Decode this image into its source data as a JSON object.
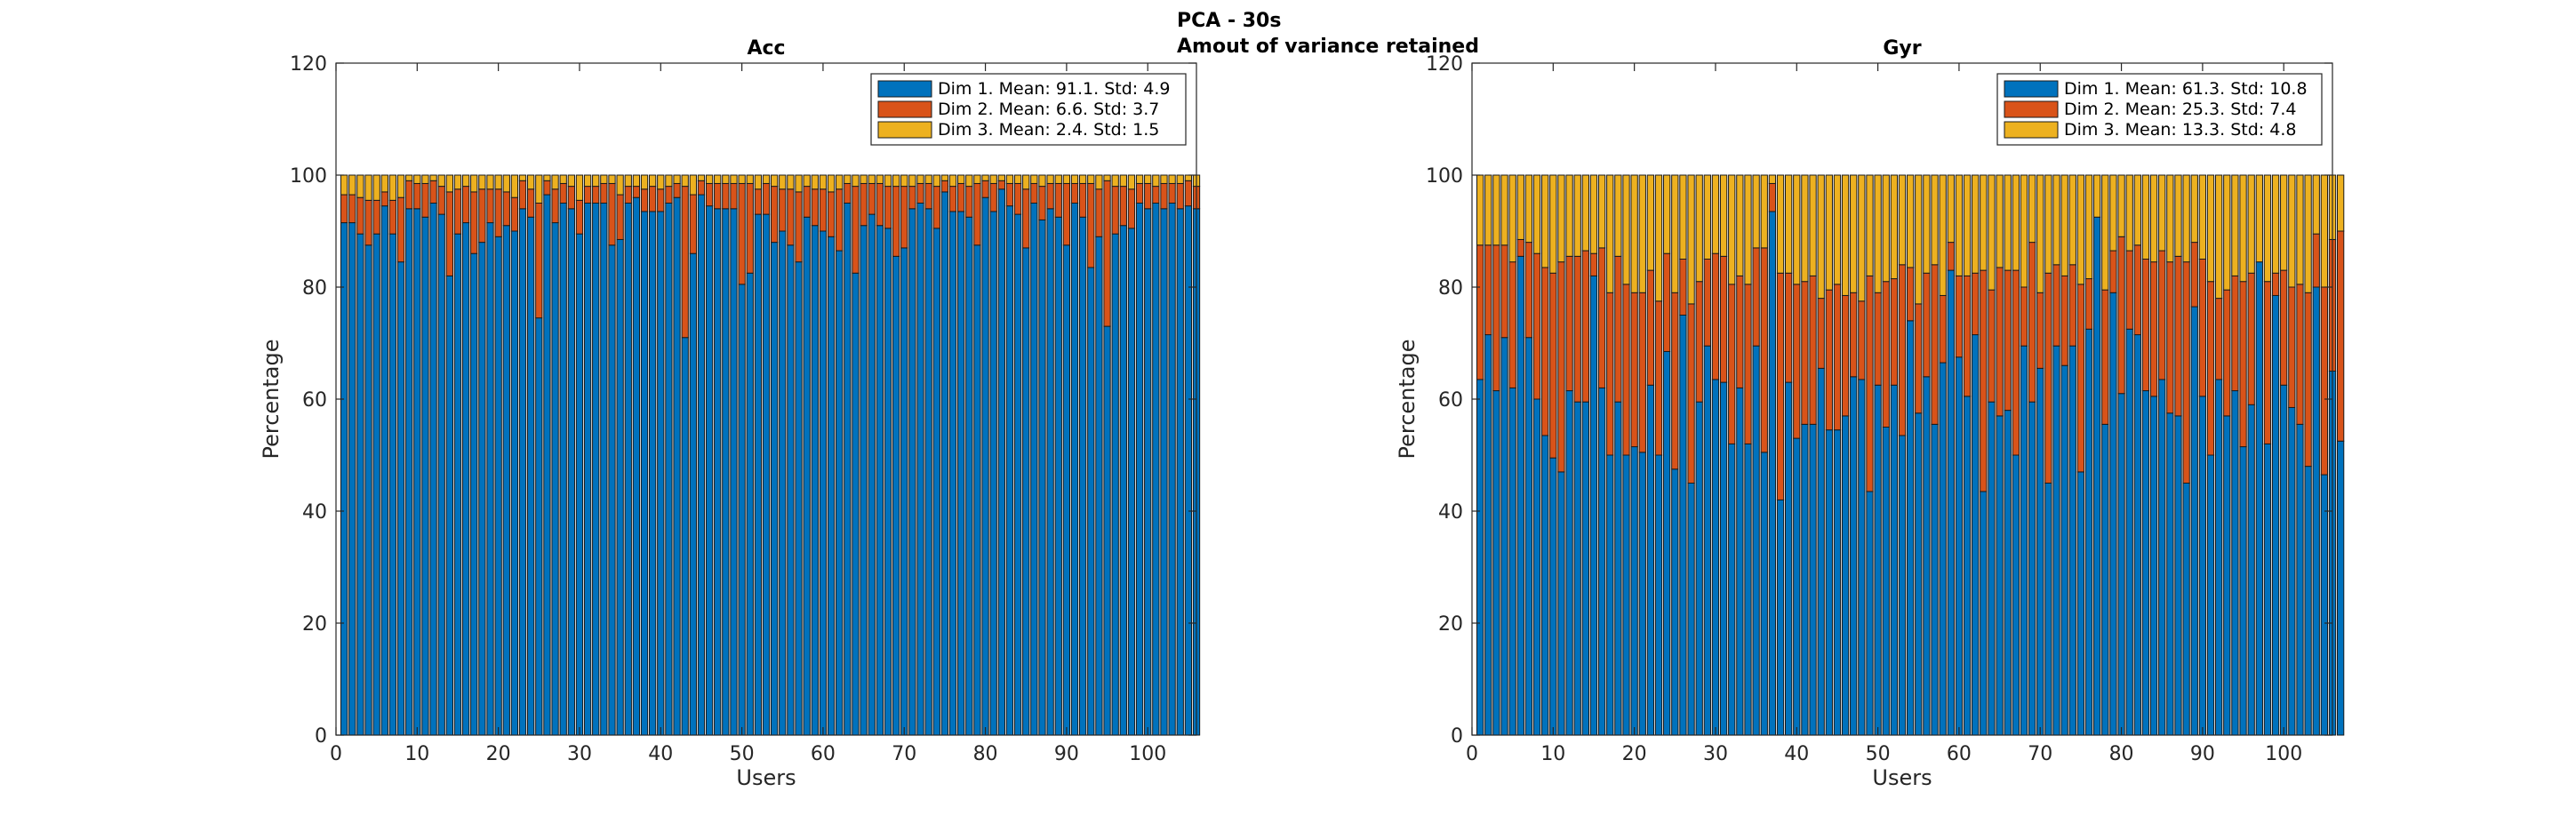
{
  "figure": {
    "title_line1": "PCA - 30s",
    "title_line2": "Amout of variance retained"
  },
  "chart_data": [
    {
      "type": "bar",
      "stacked": true,
      "title": "Acc",
      "xlabel": "Users",
      "ylabel": "Percentage",
      "xlim": [
        0,
        106
      ],
      "ylim": [
        0,
        120
      ],
      "xticks": [
        0,
        10,
        20,
        30,
        40,
        50,
        60,
        70,
        80,
        90,
        100
      ],
      "yticks": [
        0,
        20,
        40,
        60,
        80,
        100,
        120
      ],
      "grid": false,
      "legend_position": "top-right",
      "series": [
        {
          "name": "Dim 1. Mean: 91.1. Std: 4.9",
          "color": "#0072BD",
          "values": [
            91.5,
            91.5,
            89.5,
            87.5,
            89.5,
            94.5,
            89.5,
            84.5,
            94.0,
            94.0,
            92.5,
            95.0,
            93.0,
            82.0,
            89.5,
            91.5,
            86.0,
            88.0,
            91.5,
            89.0,
            91.0,
            90.0,
            94.0,
            92.5,
            74.5,
            96.5,
            91.5,
            95.0,
            94.0,
            89.5,
            95.0,
            95.0,
            95.0,
            87.5,
            88.5,
            95.0,
            96.0,
            93.5,
            93.5,
            93.5,
            95.0,
            96.0,
            71.0,
            86.0,
            96.5,
            94.5,
            94.0,
            94.0,
            94.0,
            80.5,
            82.5,
            93.0,
            93.0,
            88.0,
            90.0,
            87.5,
            84.5,
            92.5,
            91.0,
            90.0,
            89.0,
            86.5,
            95.0,
            82.5,
            91.0,
            93.0,
            91.0,
            90.5,
            85.5,
            87.0,
            94.0,
            95.0,
            94.0,
            90.5,
            97.0,
            93.5,
            93.5,
            92.5,
            87.5,
            96.0,
            93.5,
            97.5,
            94.5,
            93.0,
            87.0,
            95.0,
            92.0,
            94.0,
            92.5,
            87.5,
            95.0,
            92.5,
            83.5,
            89.0,
            73.0,
            89.5,
            91.0,
            90.5,
            95.0,
            94.0,
            95.0,
            94.0,
            95.0,
            94.0,
            94.5,
            94.0
          ],
          "values_note": "stack bottom"
        },
        {
          "name": "Dim 2. Mean: 6.6. Std: 3.7",
          "color": "#D95319",
          "values": [
            5.0,
            5.0,
            6.5,
            8.0,
            6.0,
            2.5,
            6.0,
            11.5,
            5.0,
            4.5,
            6.0,
            4.0,
            5.0,
            15.0,
            8.0,
            6.5,
            11.0,
            9.5,
            6.0,
            8.5,
            6.0,
            6.0,
            5.0,
            5.0,
            20.5,
            2.5,
            6.0,
            3.5,
            4.0,
            6.0,
            3.0,
            3.0,
            3.5,
            11.0,
            8.0,
            3.0,
            2.0,
            4.0,
            4.5,
            4.0,
            3.0,
            2.5,
            27.0,
            10.5,
            2.5,
            4.0,
            4.5,
            4.5,
            4.5,
            18.0,
            16.0,
            4.5,
            5.5,
            10.0,
            7.5,
            10.0,
            12.5,
            5.5,
            6.5,
            7.5,
            8.0,
            11.0,
            3.5,
            15.5,
            7.5,
            5.5,
            7.5,
            7.5,
            12.5,
            11.0,
            4.0,
            3.5,
            4.5,
            7.5,
            2.0,
            4.5,
            5.0,
            5.5,
            11.0,
            3.0,
            5.0,
            1.5,
            4.0,
            5.5,
            10.5,
            3.5,
            6.0,
            4.5,
            6.0,
            11.0,
            3.5,
            6.0,
            15.0,
            8.5,
            26.0,
            8.5,
            7.0,
            7.0,
            3.5,
            4.5,
            3.0,
            4.5,
            3.5,
            4.5,
            4.5,
            4.0
          ],
          "values_note": "stack middle"
        },
        {
          "name": "Dim 3. Mean: 2.4. Std: 1.5",
          "color": "#EDB120",
          "values": [
            3.5,
            3.5,
            4.0,
            4.5,
            4.5,
            3.0,
            4.5,
            4.0,
            1.0,
            1.5,
            1.5,
            1.0,
            2.0,
            3.0,
            2.5,
            2.0,
            3.0,
            2.5,
            2.5,
            2.5,
            3.0,
            4.0,
            1.0,
            2.5,
            5.0,
            1.0,
            2.5,
            1.5,
            2.0,
            4.5,
            2.0,
            2.0,
            1.5,
            1.5,
            3.5,
            2.0,
            2.0,
            2.5,
            2.0,
            2.5,
            2.0,
            1.5,
            2.0,
            3.5,
            1.0,
            1.5,
            1.5,
            1.5,
            1.5,
            1.5,
            1.5,
            2.5,
            1.5,
            2.0,
            2.5,
            2.5,
            3.0,
            2.0,
            2.5,
            2.5,
            3.0,
            2.5,
            1.5,
            2.0,
            1.5,
            1.5,
            1.5,
            2.0,
            2.0,
            2.0,
            2.0,
            1.5,
            1.5,
            2.0,
            1.0,
            2.0,
            1.5,
            2.0,
            1.5,
            1.0,
            1.5,
            1.0,
            1.5,
            1.5,
            2.5,
            1.5,
            2.0,
            1.5,
            1.5,
            1.5,
            1.5,
            1.5,
            1.5,
            2.5,
            1.0,
            2.0,
            2.0,
            2.5,
            1.5,
            1.5,
            2.0,
            1.5,
            1.5,
            1.5,
            1.0,
            2.0
          ],
          "values_note": "stack top"
        }
      ]
    },
    {
      "type": "bar",
      "stacked": true,
      "title": "Gyr",
      "xlabel": "Users",
      "ylabel": "Percentage",
      "xlim": [
        0,
        106
      ],
      "ylim": [
        0,
        120
      ],
      "xticks": [
        0,
        10,
        20,
        30,
        40,
        50,
        60,
        70,
        80,
        90,
        100
      ],
      "yticks": [
        0,
        20,
        40,
        60,
        80,
        100,
        120
      ],
      "grid": false,
      "legend_position": "top-right",
      "series": [
        {
          "name": "Dim 1. Mean: 61.3. Std: 10.8",
          "color": "#0072BD",
          "values": [
            63.5,
            71.5,
            61.5,
            71.0,
            62.0,
            85.5,
            71.0,
            60.0,
            53.5,
            49.5,
            47.0,
            61.5,
            59.5,
            59.5,
            82.0,
            62.0,
            50.0,
            59.5,
            50.0,
            51.5,
            50.5,
            62.5,
            50.0,
            68.5,
            47.5,
            75.0,
            45.0,
            59.5,
            69.5,
            63.5,
            63.0,
            52.0,
            62.0,
            52.0,
            69.5,
            50.5,
            93.5,
            42.0,
            63.0,
            53.0,
            55.5,
            55.5,
            65.5,
            54.5,
            54.5,
            57.0,
            64.0,
            63.5,
            43.5,
            62.5,
            55.0,
            62.5,
            53.5,
            74.0,
            57.5,
            64.0,
            55.5,
            66.5,
            83.0,
            67.5,
            60.5,
            71.5,
            43.5,
            59.5,
            57.0,
            58.0,
            50.0,
            69.5,
            59.5,
            65.5,
            45.0,
            69.5,
            66.0,
            69.5,
            47.0,
            72.5,
            92.5,
            55.5,
            79.0,
            61.0,
            72.5,
            71.5,
            61.5,
            60.5,
            63.5,
            57.5,
            57.0,
            45.0,
            76.5,
            60.5,
            50.0,
            63.5,
            57.0,
            61.5,
            51.5,
            59.0,
            84.5,
            52.0,
            78.5,
            62.5,
            58.5,
            55.5,
            48.0,
            80.0,
            46.5,
            65.0,
            52.5
          ],
          "values_note": "stack bottom"
        },
        {
          "name": "Dim 2. Mean: 25.3. Std: 7.4",
          "color": "#D95319",
          "values": [
            24.0,
            16.0,
            26.0,
            16.5,
            22.5,
            3.0,
            17.0,
            26.0,
            30.0,
            33.0,
            37.5,
            24.0,
            26.0,
            27.0,
            4.0,
            25.0,
            29.0,
            26.0,
            30.5,
            27.5,
            28.5,
            20.5,
            27.5,
            17.5,
            31.5,
            10.0,
            32.0,
            21.5,
            15.5,
            22.5,
            22.5,
            28.5,
            20.0,
            28.5,
            17.5,
            36.5,
            5.0,
            40.5,
            19.5,
            27.5,
            25.5,
            26.5,
            12.5,
            25.0,
            26.0,
            21.5,
            15.0,
            14.0,
            38.5,
            16.5,
            26.0,
            19.0,
            30.5,
            9.5,
            19.5,
            18.5,
            28.5,
            12.0,
            5.0,
            14.5,
            21.5,
            11.0,
            39.5,
            20.0,
            26.5,
            25.0,
            33.0,
            10.5,
            28.5,
            13.5,
            37.5,
            14.5,
            16.0,
            14.5,
            33.5,
            9.0,
            0.0,
            24.0,
            7.5,
            28.0,
            14.0,
            16.0,
            23.5,
            24.0,
            23.0,
            27.0,
            28.5,
            39.5,
            11.5,
            24.5,
            31.0,
            14.5,
            22.5,
            20.5,
            29.5,
            23.5,
            0.0,
            29.0,
            4.0,
            20.5,
            21.5,
            25.0,
            31.0,
            9.5,
            33.5,
            23.5,
            37.5
          ],
          "values_note": "stack middle"
        },
        {
          "name": "Dim 3. Mean: 13.3. Std: 4.8",
          "color": "#EDB120",
          "values": [
            12.5,
            12.5,
            12.5,
            12.5,
            15.5,
            11.5,
            12.0,
            14.0,
            16.5,
            17.5,
            15.5,
            14.5,
            14.5,
            13.5,
            14.0,
            13.0,
            21.0,
            14.5,
            19.5,
            21.0,
            21.0,
            17.0,
            22.5,
            14.0,
            21.0,
            15.0,
            23.0,
            19.0,
            15.0,
            14.0,
            14.5,
            19.5,
            18.0,
            19.5,
            13.0,
            13.0,
            1.5,
            17.5,
            17.5,
            19.5,
            19.0,
            18.0,
            22.0,
            20.5,
            19.5,
            21.5,
            21.0,
            22.5,
            18.0,
            21.0,
            19.0,
            18.5,
            16.0,
            16.5,
            23.0,
            17.5,
            16.0,
            21.5,
            12.0,
            18.0,
            18.0,
            17.5,
            17.0,
            20.5,
            16.5,
            17.0,
            17.0,
            20.0,
            12.0,
            21.0,
            17.5,
            16.0,
            18.0,
            16.0,
            19.5,
            18.5,
            7.5,
            20.5,
            13.5,
            11.0,
            13.5,
            12.5,
            15.0,
            15.5,
            13.5,
            15.5,
            14.5,
            15.5,
            12.0,
            15.0,
            19.0,
            22.0,
            20.5,
            18.0,
            19.0,
            17.5,
            15.5,
            19.0,
            17.5,
            17.0,
            20.0,
            19.5,
            21.0,
            10.5,
            20.0,
            11.5,
            10.0
          ],
          "values_note": "stack top"
        }
      ]
    }
  ]
}
